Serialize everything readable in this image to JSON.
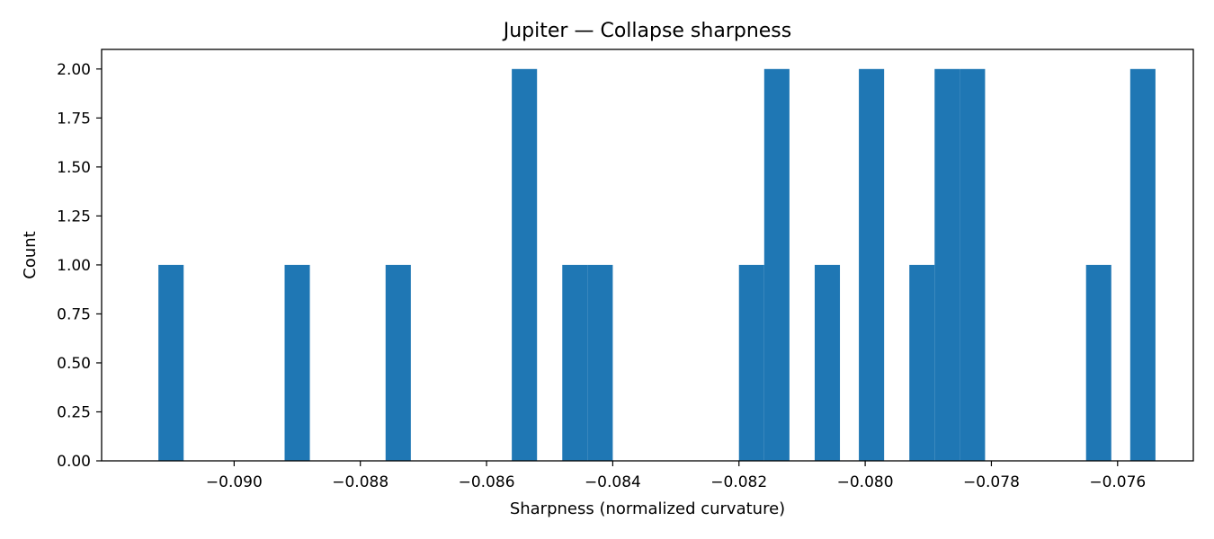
{
  "chart_data": {
    "type": "bar",
    "title": "Jupiter — Collapse sharpness",
    "xlabel": "Sharpness (normalized curvature)",
    "ylabel": "Count",
    "xlim": [
      -0.0921,
      -0.0748
    ],
    "ylim": [
      0,
      2.1
    ],
    "bin_width": 0.0004,
    "bins": [
      {
        "x0": -0.0912,
        "x1": -0.0908,
        "count": 1
      },
      {
        "x0": -0.0892,
        "x1": -0.0888,
        "count": 1
      },
      {
        "x0": -0.0876,
        "x1": -0.0872,
        "count": 1
      },
      {
        "x0": -0.0856,
        "x1": -0.0852,
        "count": 2
      },
      {
        "x0": -0.0848,
        "x1": -0.0844,
        "count": 1
      },
      {
        "x0": -0.0844,
        "x1": -0.084,
        "count": 1
      },
      {
        "x0": -0.082,
        "x1": -0.0816,
        "count": 1
      },
      {
        "x0": -0.0816,
        "x1": -0.0812,
        "count": 2
      },
      {
        "x0": -0.0808,
        "x1": -0.0804,
        "count": 1
      },
      {
        "x0": -0.0801,
        "x1": -0.0797,
        "count": 2
      },
      {
        "x0": -0.0793,
        "x1": -0.0789,
        "count": 1
      },
      {
        "x0": -0.0789,
        "x1": -0.0785,
        "count": 2
      },
      {
        "x0": -0.0785,
        "x1": -0.0781,
        "count": 2
      },
      {
        "x0": -0.0765,
        "x1": -0.0761,
        "count": 1
      },
      {
        "x0": -0.0758,
        "x1": -0.0754,
        "count": 2
      }
    ],
    "xticks": [
      -0.09,
      -0.088,
      -0.086,
      -0.084,
      -0.082,
      -0.08,
      -0.078,
      -0.076
    ],
    "xtick_labels": [
      "−0.090",
      "−0.088",
      "−0.086",
      "−0.084",
      "−0.082",
      "−0.080",
      "−0.078",
      "−0.076"
    ],
    "yticks": [
      0,
      0.25,
      0.5,
      0.75,
      1.0,
      1.25,
      1.5,
      1.75,
      2.0
    ],
    "ytick_labels": [
      "0.00",
      "0.25",
      "0.50",
      "0.75",
      "1.00",
      "1.25",
      "1.50",
      "1.75",
      "2.00"
    ],
    "bar_color": "#1f77b4",
    "grid": false,
    "legend": "none"
  }
}
